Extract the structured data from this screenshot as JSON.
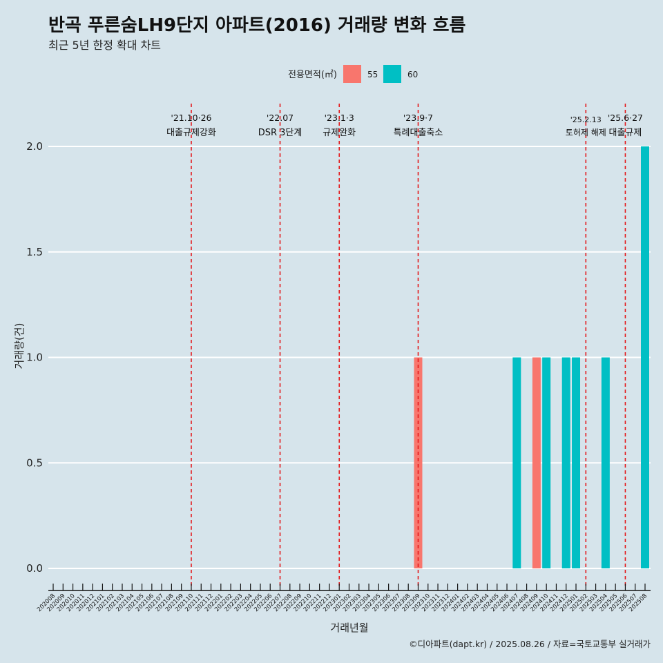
{
  "title": "반곡 푸른숨LH9단지 아파트(2016) 거래량 변화 흐름",
  "subtitle": "최근 5년 한정 확대 차트",
  "caption": "©디아파트(dapt.kr) / 2025.08.26 / 자료=국토교통부 실거래가",
  "colors": {
    "background": "#d6e4eb",
    "series_55": "#f8766d",
    "series_60": "#00bfc4",
    "event_line": "#e41a1c",
    "grid": "#ffffff"
  },
  "chart_data": {
    "type": "bar",
    "title": "반곡 푸른숨LH9단지 아파트(2016) 거래량 변화 흐름",
    "subtitle": "최근 5년 한정 확대 차트",
    "xlabel": "거래년월",
    "ylabel": "거래량(건)",
    "ylim": [
      0,
      2
    ],
    "yticks": [
      "0.0",
      "0.5",
      "1.0",
      "1.5",
      "2.0"
    ],
    "grid": true,
    "legend": {
      "title": "전용면적(㎡)",
      "placement": "top",
      "entries": [
        "55",
        "60"
      ]
    },
    "categories": [
      "202008",
      "202009",
      "202010",
      "202011",
      "202012",
      "202101",
      "202102",
      "202103",
      "202104",
      "202105",
      "202106",
      "202107",
      "202108",
      "202109",
      "202110",
      "202111",
      "202112",
      "202201",
      "202202",
      "202203",
      "202204",
      "202205",
      "202206",
      "202207",
      "202208",
      "202209",
      "202210",
      "202211",
      "202212",
      "202301",
      "202302",
      "202303",
      "202304",
      "202305",
      "202306",
      "202307",
      "202308",
      "202309",
      "202310",
      "202311",
      "202312",
      "202401",
      "202402",
      "202403",
      "202404",
      "202405",
      "202406",
      "202407",
      "202408",
      "202409",
      "202410",
      "202411",
      "202412",
      "202501",
      "202502",
      "202503",
      "202504",
      "202505",
      "202506",
      "202507",
      "202508"
    ],
    "series": [
      {
        "name": "55",
        "color": "#f8766d",
        "points": [
          {
            "x": "202309",
            "y": 1
          },
          {
            "x": "202409",
            "y": 1
          }
        ]
      },
      {
        "name": "60",
        "color": "#00bfc4",
        "points": [
          {
            "x": "202407",
            "y": 1
          },
          {
            "x": "202410",
            "y": 1
          },
          {
            "x": "202412",
            "y": 1
          },
          {
            "x": "202501",
            "y": 1
          },
          {
            "x": "202504",
            "y": 1
          },
          {
            "x": "202508",
            "y": 2
          }
        ]
      }
    ],
    "events": [
      {
        "date": "202110",
        "label_date": "'21.10·26",
        "label_text": "대출규제강화"
      },
      {
        "date": "202207",
        "label_date": "'22.07",
        "label_text": "DSR 3단계"
      },
      {
        "date": "202301",
        "label_date": "'23.1·3",
        "label_text": "규제완화"
      },
      {
        "date": "202309",
        "label_date": "'23.9·7",
        "label_text": "특례대출축소"
      },
      {
        "date": "202502",
        "label_date": "'25.2.13",
        "label_text": "토허제 해제"
      },
      {
        "date": "202506",
        "label_date": "'25.6·27",
        "label_text": "대출규제"
      }
    ]
  }
}
